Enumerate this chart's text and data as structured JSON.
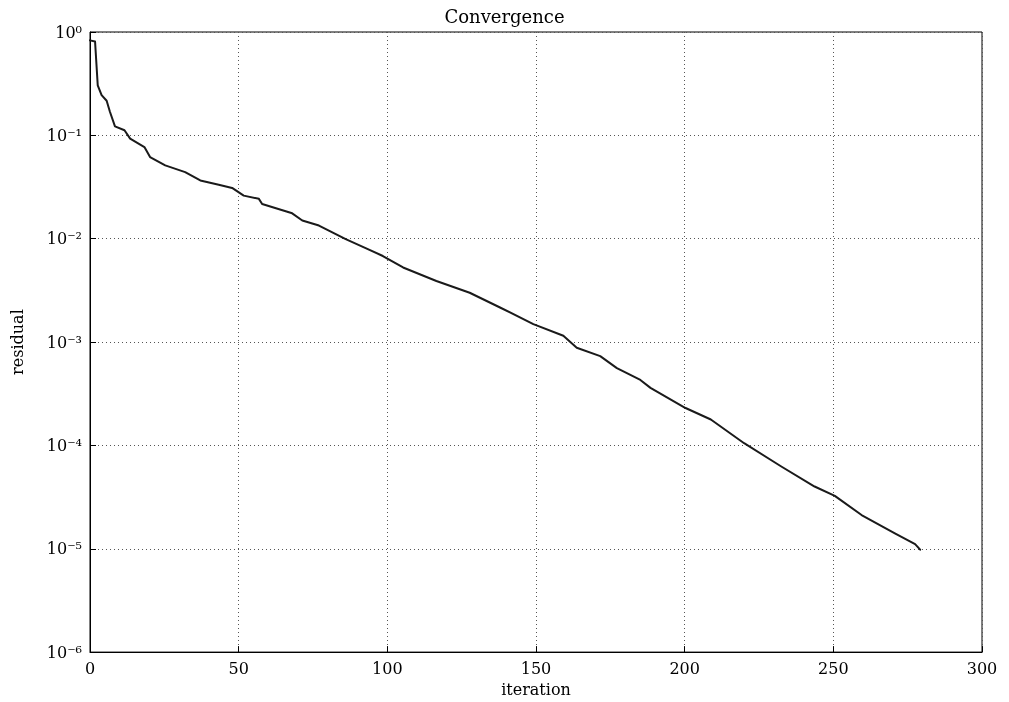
{
  "chart_data": {
    "type": "line",
    "title": "Convergence",
    "xlabel": "iteration",
    "ylabel": "residual",
    "log": "y",
    "grid": true,
    "marker": "none",
    "line_style": "solid",
    "xlim": [
      0,
      300
    ],
    "xticks": [
      0,
      50,
      100,
      150,
      200,
      250,
      300
    ],
    "ylim": [
      1e-06,
      1
    ],
    "yticks": [
      {
        "value": 1e-06,
        "label": "10⁻⁶"
      },
      {
        "value": 1e-05,
        "label": "10⁻⁵"
      },
      {
        "value": 0.0001,
        "label": "10⁻⁴"
      },
      {
        "value": 0.001,
        "label": "10⁻³"
      },
      {
        "value": 0.01,
        "label": "10⁻²"
      },
      {
        "value": 0.1,
        "label": "10⁻¹"
      },
      {
        "value": 1,
        "label": "10⁰"
      }
    ],
    "series": [
      {
        "color": "#1a1a1a",
        "x": [
          0,
          1.7,
          2.6,
          3.9,
          5.6,
          6.7,
          8.4,
          11.6,
          13.5,
          18.3,
          20.2,
          25.3,
          32,
          37.1,
          43.3,
          47.8,
          51.7,
          56.8,
          57.9,
          68,
          71.4,
          77,
          86,
          92.7,
          98.5,
          105.3,
          116.5,
          127.7,
          137.9,
          149.1,
          159.2,
          163.7,
          171.6,
          177.2,
          185.1,
          188.5,
          200.3,
          208.8,
          220,
          232.5,
          243.7,
          250.5,
          259.5,
          270.7,
          277.5,
          279.2
        ],
        "values": [
          0.83,
          0.81,
          0.305,
          0.245,
          0.216,
          0.169,
          0.122,
          0.112,
          0.093,
          0.077,
          0.0617,
          0.0512,
          0.0441,
          0.0366,
          0.0332,
          0.031,
          0.0261,
          0.0243,
          0.0217,
          0.0176,
          0.015,
          0.0134,
          0.0099,
          0.0081,
          0.0068,
          0.00527,
          0.0039,
          0.003,
          0.00216,
          0.00149,
          0.00115,
          0.00088,
          0.00073,
          0.00056,
          0.00043,
          0.00036,
          0.00023,
          0.000178,
          0.000105,
          6.25e-05,
          4e-05,
          3.25e-05,
          2.12e-05,
          1.41e-05,
          1.11e-05,
          9.8e-06
        ]
      }
    ]
  }
}
